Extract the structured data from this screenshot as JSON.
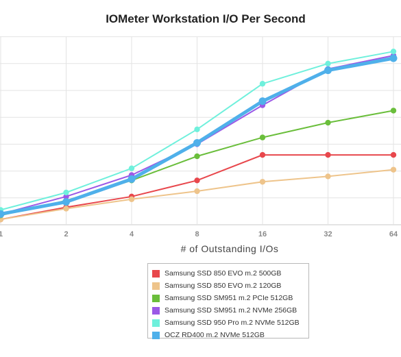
{
  "chart_data": {
    "type": "line",
    "title": "IOMeter Workstation I/O Per Second",
    "xlabel": "# of Outstanding I/Os",
    "ylabel": "",
    "x": [
      1,
      2,
      4,
      8,
      16,
      32,
      64
    ],
    "x_tick_labels": [
      "1",
      "2",
      "4",
      "8",
      "16",
      "32",
      "64"
    ],
    "x_scale": "log2",
    "y_tick_labels": [],
    "grid": true,
    "legend_position": "bottom-center",
    "series": [
      {
        "name": "Samsung SSD 850 EVO m.2 500GB",
        "color": "#e8474c",
        "values": [
          0.2,
          0.65,
          1.05,
          1.65,
          2.6,
          2.6,
          2.6
        ]
      },
      {
        "name": "Samsung SSD 850 EVO m.2 120GB",
        "color": "#eec48b",
        "values": [
          0.2,
          0.6,
          0.95,
          1.25,
          1.6,
          1.8,
          2.05
        ]
      },
      {
        "name": "Samsung SSD SM951 m.2 PCIe 512GB",
        "color": "#6abe3b",
        "values": [
          0.35,
          0.9,
          1.65,
          2.55,
          3.25,
          3.8,
          4.25
        ]
      },
      {
        "name": "Samsung SSD SM951 m.2 NVMe 256GB",
        "color": "#9b59e6",
        "values": [
          0.4,
          1.05,
          1.85,
          3.0,
          4.45,
          5.8,
          6.3
        ]
      },
      {
        "name": "Samsung SSD 950 Pro m.2 NVMe 512GB",
        "color": "#6ff0dc",
        "values": [
          0.55,
          1.2,
          2.1,
          3.55,
          5.25,
          6.0,
          6.45
        ]
      },
      {
        "name": "OCZ RD400 m.2 NVMe 512GB",
        "color": "#4fb0ea",
        "values": [
          0.4,
          0.85,
          1.7,
          3.05,
          4.6,
          5.75,
          6.2
        ]
      }
    ]
  }
}
